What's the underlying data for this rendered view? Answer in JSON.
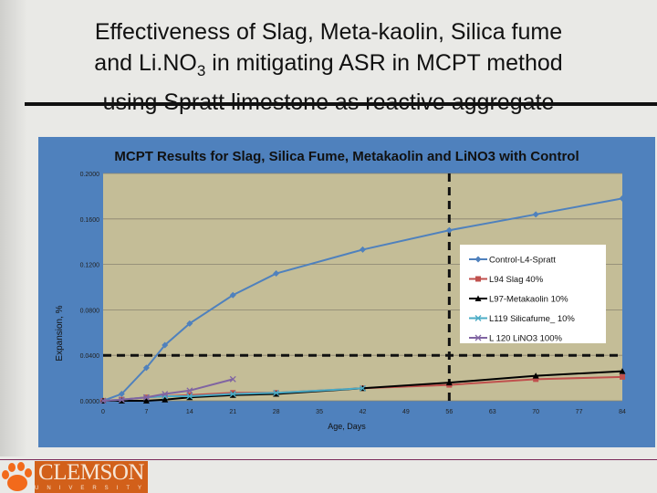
{
  "slide": {
    "title_lines": [
      "Effectiveness of Slag, Meta-kaolin, Silica fume",
      "and Li.NO",
      "3",
      " in mitigating ASR in MCPT method",
      "using Spratt limestone as reactive aggregate"
    ],
    "logo_text": "CLEMSON",
    "logo_subtext": "UNIVERSITY"
  },
  "chart_data": {
    "type": "line",
    "title": "MCPT Results for Slag, Silica Fume, Metakaolin and LiNO3 with Control",
    "xlabel": "Age, Days",
    "ylabel": "Expansion, %",
    "xlim": [
      0,
      84
    ],
    "ylim": [
      0,
      0.2
    ],
    "xticks": [
      "0",
      "7",
      "14",
      "21",
      "28",
      "35",
      "42",
      "49",
      "56",
      "63",
      "70",
      "77",
      "84"
    ],
    "yticks": [
      "0.0000",
      "0.0400",
      "0.0800",
      "0.1200",
      "0.1600",
      "0.2000"
    ],
    "grid": "horizontal",
    "legend": "right",
    "colors": {
      "panel": "#4f81bd",
      "plot": "#c4bd97"
    },
    "series": [
      {
        "name": "Control-L4-Spratt",
        "color": "#4f81bd",
        "marker": "diamond",
        "x": [
          0,
          3,
          7,
          10,
          14,
          21,
          28,
          42,
          56,
          70,
          84
        ],
        "y": [
          0,
          0.006,
          0.029,
          0.049,
          0.068,
          0.093,
          0.112,
          0.133,
          0.15,
          0.164,
          0.178
        ]
      },
      {
        "name": "L94 Slag 40%",
        "color": "#c0504d",
        "marker": "square",
        "x": [
          0,
          3,
          7,
          10,
          14,
          21,
          28,
          42,
          56,
          70,
          84
        ],
        "y": [
          0,
          0.001,
          0.003,
          0.004,
          0.005,
          0.007,
          0.007,
          0.011,
          0.014,
          0.019,
          0.021
        ]
      },
      {
        "name": "L97-Metakaolin 10%",
        "color": "#000000",
        "marker": "triangle",
        "x": [
          0,
          3,
          7,
          10,
          14,
          21,
          28,
          42,
          56,
          70,
          84
        ],
        "y": [
          0,
          0,
          0,
          0.001,
          0.003,
          0.005,
          0.006,
          0.011,
          0.016,
          0.022,
          0.026
        ]
      },
      {
        "name": "L119 Silicafume_ 10%",
        "color": "#4bacc6",
        "marker": "x",
        "x": [
          0,
          3,
          7,
          10,
          14,
          21,
          28,
          42
        ],
        "y": [
          0,
          0.001,
          0.003,
          0.004,
          0.004,
          0.006,
          0.007,
          0.011
        ]
      },
      {
        "name": "L 120 LiNO3  100%",
        "color": "#8064a2",
        "marker": "x",
        "x": [
          0,
          3,
          7,
          10,
          14,
          21
        ],
        "y": [
          0,
          0.001,
          0.003,
          0.006,
          0.009,
          0.019
        ]
      }
    ],
    "reference_lines": [
      {
        "axis": "y",
        "value": 0.04,
        "style": "dashed"
      },
      {
        "axis": "x",
        "value": 56,
        "style": "dashed"
      }
    ]
  }
}
